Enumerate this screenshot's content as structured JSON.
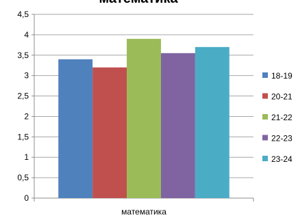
{
  "chart_data": {
    "type": "bar",
    "title": "математика",
    "categories": [
      "математика"
    ],
    "series": [
      {
        "name": "18-19",
        "values": [
          3.4
        ],
        "color": "#4F81BD"
      },
      {
        "name": "20-21",
        "values": [
          3.2
        ],
        "color": "#C0504D"
      },
      {
        "name": "21-22",
        "values": [
          3.9
        ],
        "color": "#9BBB59"
      },
      {
        "name": "22-23",
        "values": [
          3.55
        ],
        "color": "#8064A2"
      },
      {
        "name": "23-24",
        "values": [
          3.7
        ],
        "color": "#4BACC6"
      }
    ],
    "y_ticks": [
      "0",
      "0,5",
      "1",
      "1,5",
      "2",
      "2,5",
      "3",
      "3,5",
      "4",
      "4,5"
    ],
    "ylim": [
      0,
      4.5
    ],
    "xlabel": "",
    "ylabel": "",
    "grid": true,
    "legend_position": "right"
  }
}
